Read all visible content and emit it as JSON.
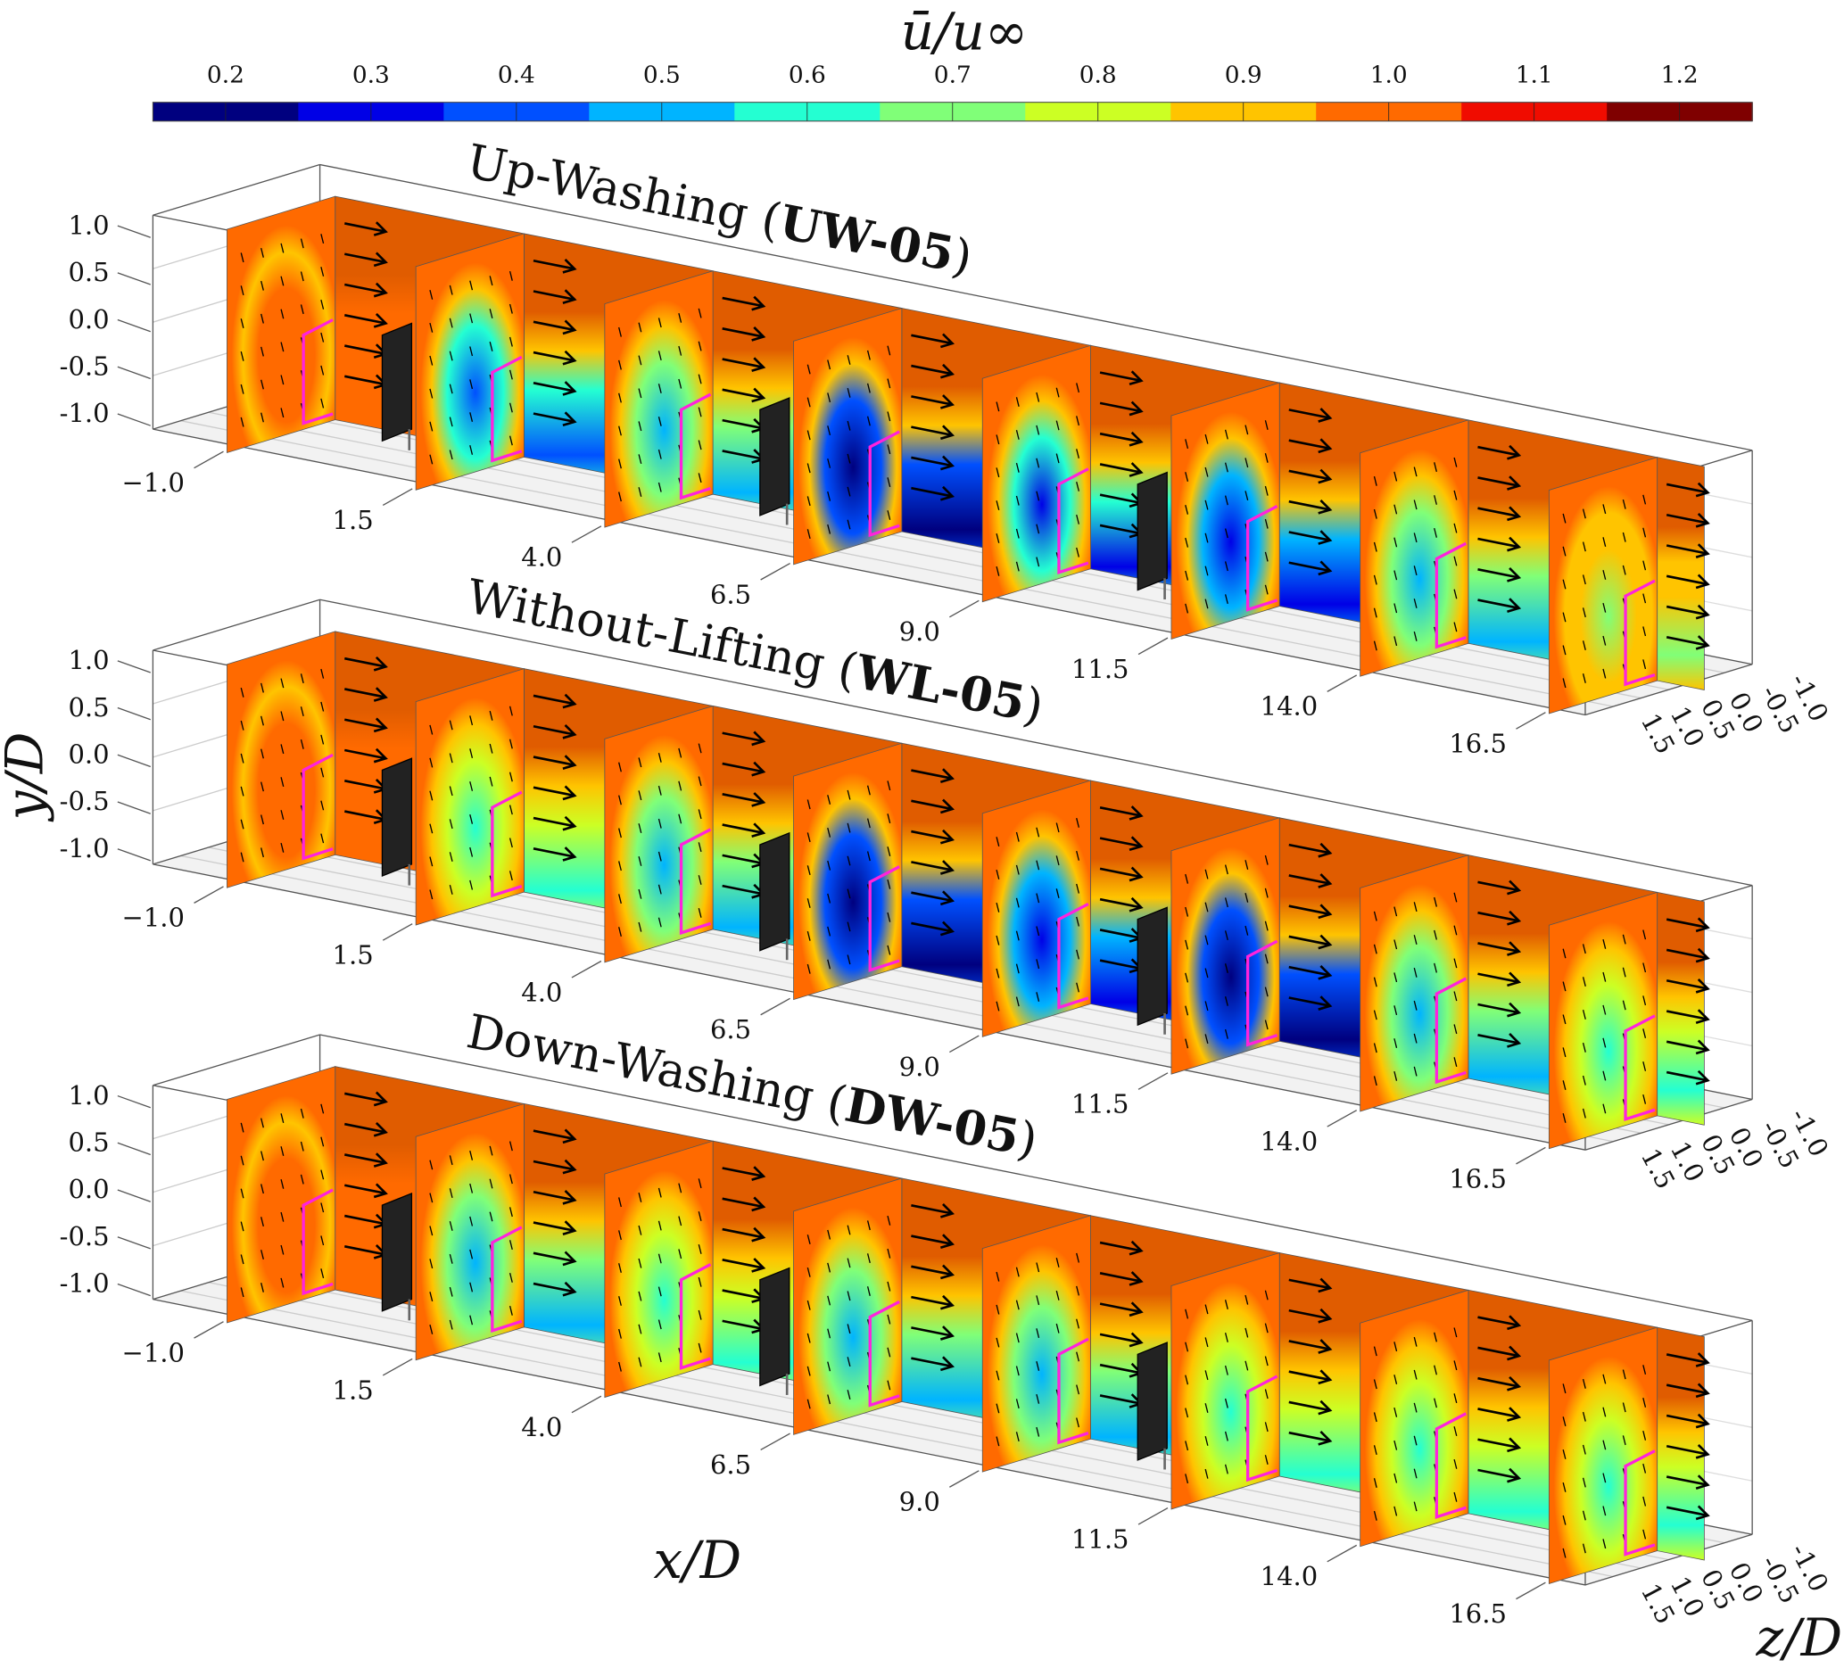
{
  "chart_data": {
    "type": "heatmap",
    "title": "ū/u∞",
    "colorbar": {
      "label": "ū/u∞",
      "range": [
        0.15,
        1.25
      ],
      "ticks": [
        "0.2",
        "0.3",
        "0.4",
        "0.5",
        "0.6",
        "0.7",
        "0.8",
        "0.9",
        "1.0",
        "1.1",
        "1.2"
      ],
      "colors": [
        "#00007f",
        "#0000e6",
        "#0050ff",
        "#00b4ff",
        "#24ffd2",
        "#80ff78",
        "#ccff24",
        "#ffc400",
        "#ff6a00",
        "#f00c00",
        "#7f0000"
      ]
    },
    "ylabel": "y/D",
    "xlabel": "x/D",
    "zlabel": "z/D",
    "y_ticks": [
      "1.0",
      "0.5",
      "0.0",
      "-0.5",
      "-1.0"
    ],
    "x_ticks": [
      "−1.0",
      "1.5",
      "4.0",
      "6.5",
      "9.0",
      "11.5",
      "14.0",
      "16.5"
    ],
    "z_ticks": [
      "-1.0",
      "-0.5",
      "0.0",
      "0.5",
      "1.0",
      "1.5"
    ],
    "x_stations": [
      -1.0,
      1.5,
      4.0,
      6.5,
      9.0,
      11.5,
      14.0,
      16.5
    ],
    "panels": [
      {
        "name": "Up-Washing (",
        "code": "UW-05",
        "close": ")",
        "wake_core_u": [
          1.0,
          0.4,
          0.45,
          0.2,
          0.35,
          0.3,
          0.5,
          0.7
        ]
      },
      {
        "name": "Without-Lifting (",
        "code": "WL-05",
        "close": ")",
        "wake_core_u": [
          1.0,
          0.6,
          0.5,
          0.2,
          0.3,
          0.2,
          0.5,
          0.6
        ]
      },
      {
        "name": "Down-Washing (",
        "code": "DW-05",
        "close": ")",
        "wake_core_u": [
          1.0,
          0.5,
          0.6,
          0.5,
          0.5,
          0.6,
          0.6,
          0.6
        ]
      }
    ]
  }
}
